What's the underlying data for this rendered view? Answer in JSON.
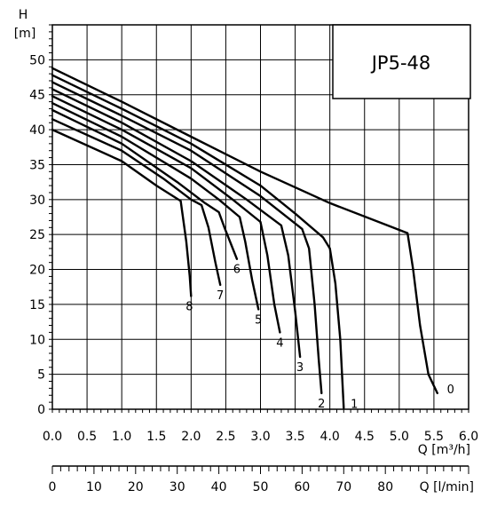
{
  "chart_data": {
    "type": "line",
    "title": "JP5-48",
    "xlabel": "Q [m³/h]",
    "ylabel": "H\n[m]",
    "x2label": "Q [l/min]",
    "xlim": [
      0,
      6
    ],
    "ylim": [
      0,
      55
    ],
    "x2lim": [
      0,
      100
    ],
    "x_ticks": [
      0.0,
      0.5,
      1.0,
      1.5,
      2.0,
      2.5,
      3.0,
      3.5,
      4.0,
      4.5,
      5.0,
      5.5,
      6.0
    ],
    "x_tick_labels": [
      "0.0",
      "0.5",
      "1.0",
      "1.5",
      "2.0",
      "2.5",
      "3.0",
      "3.5",
      "4.0",
      "4.5",
      "5.0",
      "5.5",
      "6.0"
    ],
    "y_ticks": [
      0,
      5,
      10,
      15,
      20,
      25,
      30,
      35,
      40,
      45,
      50
    ],
    "y_tick_labels": [
      "0",
      "5",
      "10",
      "15",
      "20",
      "25",
      "30",
      "35",
      "40",
      "45",
      "50"
    ],
    "x2_ticks": [
      0,
      10,
      20,
      30,
      40,
      50,
      60,
      70,
      80
    ],
    "x2_tick_labels": [
      "0",
      "10",
      "20",
      "30",
      "40",
      "50",
      "60",
      "70",
      "80"
    ],
    "grid": true,
    "series": [
      {
        "name": "0",
        "points": [
          [
            0,
            48.8
          ],
          [
            1.0,
            44.0
          ],
          [
            2.0,
            39.0
          ],
          [
            3.0,
            34.0
          ],
          [
            4.0,
            29.5
          ],
          [
            5.12,
            25.2
          ],
          [
            5.2,
            20.0
          ],
          [
            5.3,
            12.0
          ],
          [
            5.42,
            5.0
          ],
          [
            5.55,
            2.3
          ]
        ]
      },
      {
        "name": "1",
        "points": [
          [
            0,
            47.8
          ],
          [
            1.0,
            43.0
          ],
          [
            2.0,
            38.0
          ],
          [
            3.0,
            32.0
          ],
          [
            3.5,
            28.0
          ],
          [
            3.9,
            24.6
          ],
          [
            4.0,
            23.0
          ],
          [
            4.08,
            18.0
          ],
          [
            4.15,
            10.0
          ],
          [
            4.2,
            0.2
          ]
        ]
      },
      {
        "name": "2",
        "points": [
          [
            0,
            46.8
          ],
          [
            1.0,
            42.0
          ],
          [
            2.0,
            37.0
          ],
          [
            3.0,
            30.5
          ],
          [
            3.6,
            25.8
          ],
          [
            3.7,
            23.0
          ],
          [
            3.78,
            15.0
          ],
          [
            3.84,
            7.0
          ],
          [
            3.88,
            2.3
          ]
        ]
      },
      {
        "name": "3",
        "points": [
          [
            0,
            45.8
          ],
          [
            1.0,
            41.0
          ],
          [
            2.0,
            35.5
          ],
          [
            2.8,
            30.0
          ],
          [
            3.3,
            26.3
          ],
          [
            3.4,
            22.0
          ],
          [
            3.5,
            14.0
          ],
          [
            3.57,
            7.5
          ]
        ]
      },
      {
        "name": "4",
        "points": [
          [
            0,
            44.8
          ],
          [
            1.0,
            40.0
          ],
          [
            2.0,
            34.5
          ],
          [
            2.6,
            30.0
          ],
          [
            3.0,
            26.8
          ],
          [
            3.1,
            22.0
          ],
          [
            3.2,
            15.0
          ],
          [
            3.28,
            11.0
          ]
        ]
      },
      {
        "name": "5",
        "points": [
          [
            0,
            43.8
          ],
          [
            1.0,
            39.0
          ],
          [
            2.0,
            33.0
          ],
          [
            2.4,
            30.0
          ],
          [
            2.7,
            27.5
          ],
          [
            2.78,
            24.0
          ],
          [
            2.88,
            18.5
          ],
          [
            2.97,
            14.3
          ]
        ]
      },
      {
        "name": "6",
        "points": [
          [
            0,
            42.8
          ],
          [
            1.0,
            38.0
          ],
          [
            1.8,
            32.5
          ],
          [
            2.2,
            29.5
          ],
          [
            2.4,
            28.2
          ],
          [
            2.48,
            26.0
          ],
          [
            2.58,
            23.5
          ],
          [
            2.66,
            21.5
          ]
        ]
      },
      {
        "name": "7",
        "points": [
          [
            0,
            41.5
          ],
          [
            1.0,
            37.0
          ],
          [
            1.6,
            33.0
          ],
          [
            2.0,
            30.0
          ],
          [
            2.15,
            29.2
          ],
          [
            2.25,
            26.0
          ],
          [
            2.35,
            21.0
          ],
          [
            2.42,
            17.8
          ]
        ]
      },
      {
        "name": "8",
        "points": [
          [
            0,
            40.0
          ],
          [
            1.0,
            35.5
          ],
          [
            1.5,
            32.0
          ],
          [
            1.85,
            29.8
          ],
          [
            1.93,
            24.0
          ],
          [
            1.98,
            19.0
          ],
          [
            2.0,
            16.2
          ]
        ]
      }
    ]
  }
}
